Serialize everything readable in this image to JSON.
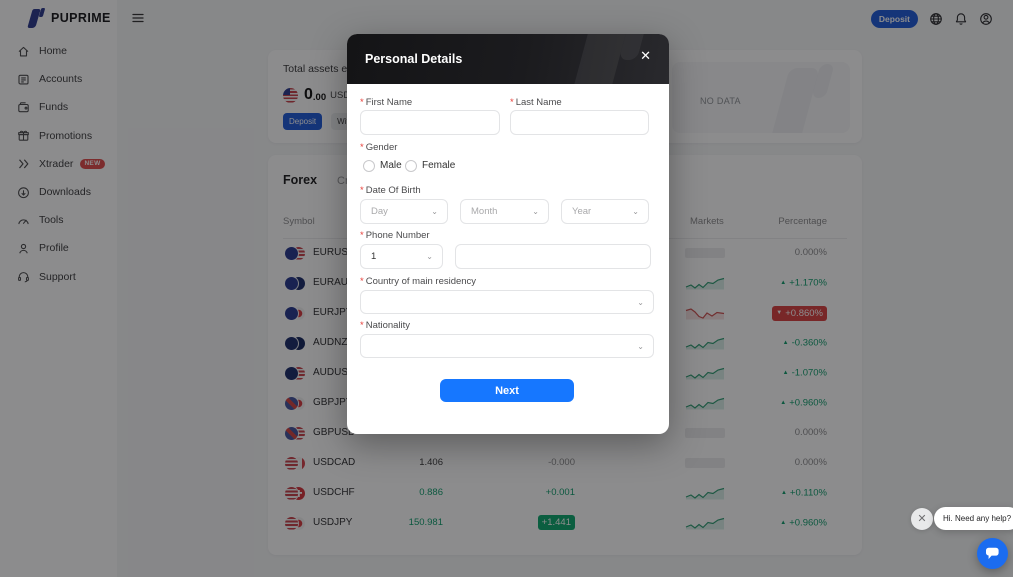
{
  "brand": {
    "name": "PUPRIME"
  },
  "header": {
    "deposit_label": "Deposit",
    "icons": [
      "globe-icon",
      "bell-icon",
      "user-icon"
    ]
  },
  "sidebar": {
    "items": [
      {
        "id": "home",
        "label": "Home",
        "icon": "home-icon"
      },
      {
        "id": "accounts",
        "label": "Accounts",
        "icon": "accounts-icon"
      },
      {
        "id": "funds",
        "label": "Funds",
        "icon": "funds-icon"
      },
      {
        "id": "promotions",
        "label": "Promotions",
        "icon": "promotions-icon"
      },
      {
        "id": "xtrader",
        "label": "Xtrader",
        "icon": "xtrader-icon",
        "badge": "NEW"
      },
      {
        "id": "downloads",
        "label": "Downloads",
        "icon": "downloads-icon"
      },
      {
        "id": "tools",
        "label": "Tools",
        "icon": "tools-icon"
      },
      {
        "id": "profile",
        "label": "Profile",
        "icon": "profile-icon"
      },
      {
        "id": "support",
        "label": "Support",
        "icon": "support-icon"
      }
    ]
  },
  "assets_card": {
    "title": "Total assets esti",
    "amount_int": "0",
    "amount_dec": ".00",
    "currency": "USD",
    "deposit_label": "Deposit",
    "withdraw_label": "Withdraw",
    "no_data": "NO DATA"
  },
  "markets_card": {
    "tabs": [
      {
        "label": "Forex",
        "active": true
      },
      {
        "label": "Crypto",
        "active": false
      }
    ],
    "columns": {
      "symbol": "Symbol",
      "markets": "Markets",
      "percentage": "Percentage"
    },
    "rows": [
      {
        "symbol": "EURUSD",
        "flags": [
          "eur",
          "usd"
        ],
        "price": "",
        "change": "",
        "price_style": "dark",
        "change_style": "muted",
        "trend": "flat",
        "pct": "0.000%",
        "pct_style": "muted"
      },
      {
        "symbol": "EURAUD",
        "flags": [
          "eur",
          "aud"
        ],
        "price": "",
        "change": "",
        "price_style": "dark",
        "change_style": "muted",
        "trend": "up",
        "pct": "+1.170%",
        "pct_style": "up"
      },
      {
        "symbol": "EURJPY",
        "flags": [
          "eur",
          "jpy"
        ],
        "price": "",
        "change": "",
        "price_style": "dark",
        "change_style": "muted",
        "trend": "down",
        "pct": "+0.860%",
        "pct_style": "down-badge"
      },
      {
        "symbol": "AUDNZD",
        "flags": [
          "aud",
          "nzd"
        ],
        "price": "",
        "change": "",
        "price_style": "dark",
        "change_style": "muted",
        "trend": "up",
        "pct": "-0.360%",
        "pct_style": "up"
      },
      {
        "symbol": "AUDUSD",
        "flags": [
          "aud",
          "usd"
        ],
        "price": "",
        "change": "",
        "price_style": "dark",
        "change_style": "muted",
        "trend": "up",
        "pct": "-1.070%",
        "pct_style": "up"
      },
      {
        "symbol": "GBPJPY",
        "flags": [
          "gbp",
          "jpy"
        ],
        "price": "",
        "change": "",
        "price_style": "dark",
        "change_style": "muted",
        "trend": "up",
        "pct": "+0.960%",
        "pct_style": "up"
      },
      {
        "symbol": "GBPUSD",
        "flags": [
          "gbp",
          "usd"
        ],
        "price": "",
        "change": "",
        "price_style": "dark",
        "change_style": "muted",
        "trend": "flat",
        "pct": "0.000%",
        "pct_style": "muted"
      },
      {
        "symbol": "USDCAD",
        "flags": [
          "usd",
          "cad"
        ],
        "price": "1.406",
        "change": "-0.000",
        "price_style": "dark",
        "change_style": "muted",
        "trend": "flat",
        "pct": "0.000%",
        "pct_style": "muted"
      },
      {
        "symbol": "USDCHF",
        "flags": [
          "usd",
          "chf"
        ],
        "price": "0.886",
        "change": "+0.001",
        "price_style": "up",
        "change_style": "up",
        "trend": "up",
        "pct": "+0.110%",
        "pct_style": "up"
      },
      {
        "symbol": "USDJPY",
        "flags": [
          "usd",
          "jpy"
        ],
        "price": "150.981",
        "change": "+1.441",
        "price_style": "up",
        "change_style": "up-badge",
        "trend": "up",
        "pct": "+0.960%",
        "pct_style": "up"
      }
    ]
  },
  "modal": {
    "title": "Personal Details",
    "close_glyph": "✕",
    "first_name_label": "First Name",
    "last_name_label": "Last Name",
    "gender_label": "Gender",
    "gender_options": [
      "Male",
      "Female"
    ],
    "dob_label": "Date Of Birth",
    "dob_placeholders": [
      "Day",
      "Month",
      "Year"
    ],
    "phone_label": "Phone Number",
    "phone_code": "1",
    "country_label": "Country of main residency",
    "nationality_label": "Nationality",
    "next_label": "Next"
  },
  "chat": {
    "message": "Hi. Need any help?",
    "close_glyph": "✕"
  },
  "colors": {
    "accent_blue": "#1f5bd9",
    "primary_blue": "#1677ff",
    "positive_green": "#0f9e6d",
    "negative_red": "#da4040",
    "badge_red": "#e14b4b"
  }
}
